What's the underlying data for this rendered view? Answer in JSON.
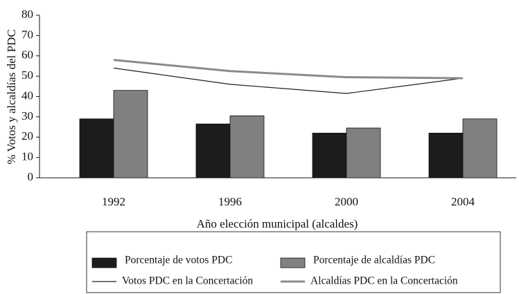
{
  "chart_data": {
    "type": "bar",
    "y_label": "% Votos y alcaldías del PDC",
    "x_label": "Año elección municipal (alcaldes)",
    "categories": [
      "1992",
      "1996",
      "2000",
      "2004"
    ],
    "ylim": [
      0,
      80
    ],
    "yticks": [
      0,
      10,
      20,
      30,
      40,
      50,
      60,
      70,
      80
    ],
    "series": [
      {
        "name": "Porcentaje de votos PDC",
        "type": "bar",
        "color": "#1c1c1c",
        "values": [
          29,
          26.5,
          22,
          22
        ]
      },
      {
        "name": "Porcentaje de alcaldías PDC",
        "type": "bar",
        "color": "#808080",
        "values": [
          43,
          30.5,
          24.5,
          29
        ]
      },
      {
        "name": "Votos PDC en la Concertación",
        "type": "line",
        "color": "#1c1c1c",
        "values": [
          54,
          46,
          41.5,
          49
        ]
      },
      {
        "name": "Alcaldías PDC en la Concertación",
        "type": "line",
        "color": "#8a8a8a",
        "values": [
          58,
          52.5,
          49.5,
          49
        ]
      }
    ]
  }
}
